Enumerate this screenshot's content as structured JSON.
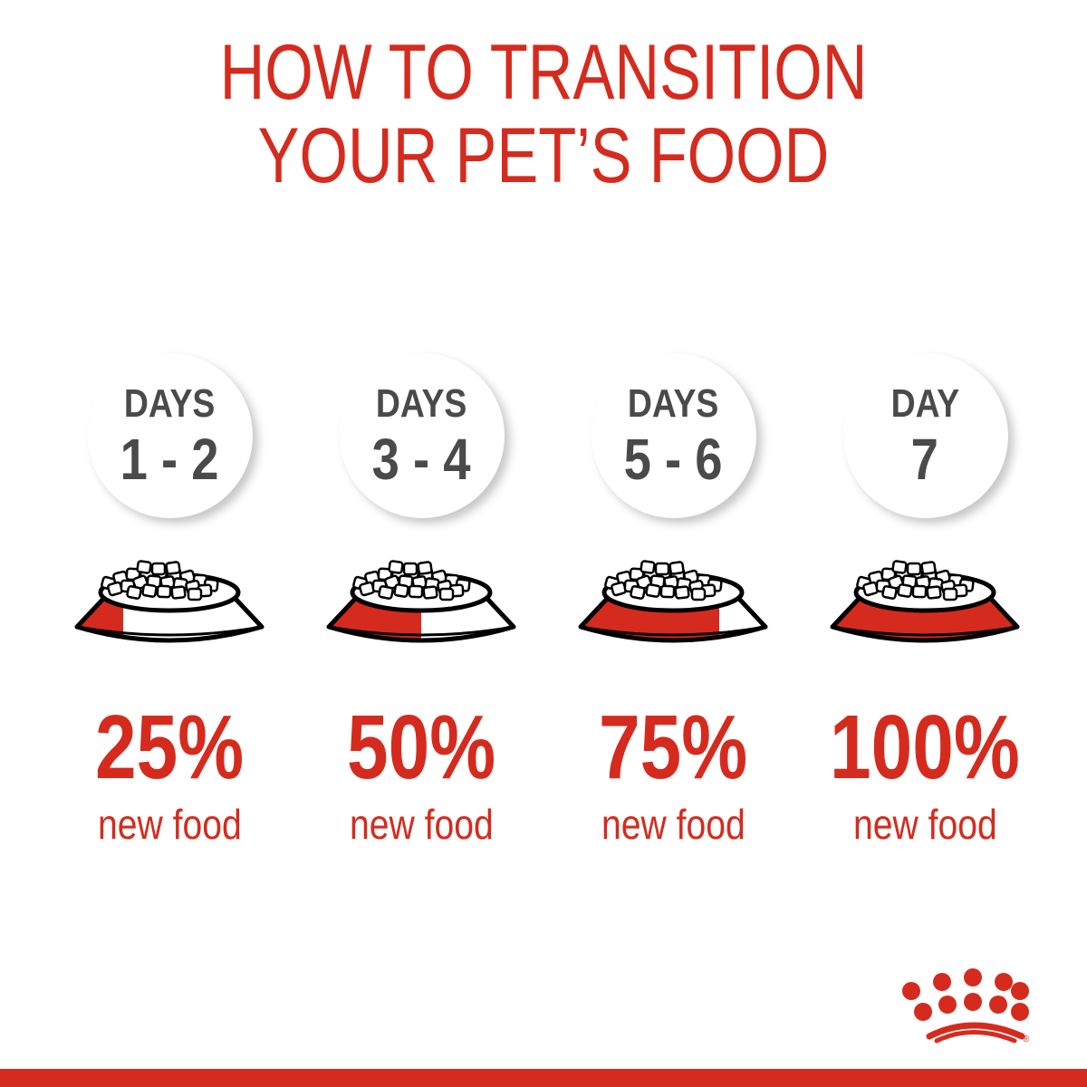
{
  "title": {
    "line1": "HOW TO TRANSITION",
    "line2": "YOUR PET’S FOOD"
  },
  "steps": [
    {
      "label": "DAYS",
      "range": "1 - 2",
      "percent": "25%",
      "new_food_fraction": 0.25,
      "caption": "new food"
    },
    {
      "label": "DAYS",
      "range": "3 - 4",
      "percent": "50%",
      "new_food_fraction": 0.5,
      "caption": "new food"
    },
    {
      "label": "DAYS",
      "range": "5 - 6",
      "percent": "75%",
      "new_food_fraction": 0.75,
      "caption": "new food"
    },
    {
      "label": "DAY",
      "range": "7",
      "percent": "100%",
      "new_food_fraction": 1.0,
      "caption": "new food"
    }
  ],
  "logo": {
    "name": "crown-logo",
    "registered": "®"
  },
  "colors": {
    "accent": "#d52b1e",
    "text_gray": "#4a4a4a"
  }
}
